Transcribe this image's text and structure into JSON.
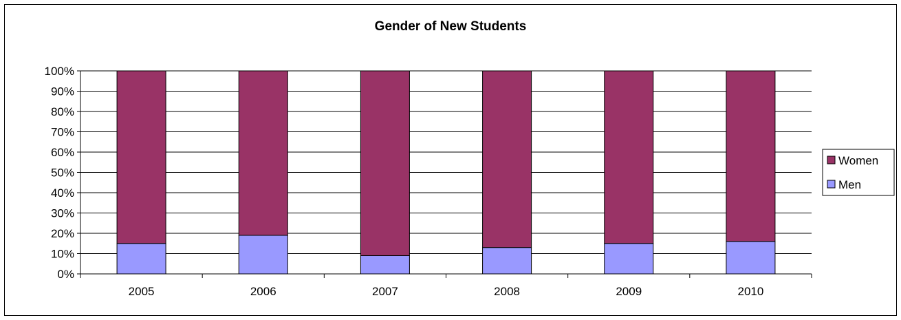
{
  "chart_data": {
    "type": "bar",
    "stacked": true,
    "title": "Gender of New Students",
    "xlabel": "",
    "ylabel": "",
    "categories": [
      "2005",
      "2006",
      "2007",
      "2008",
      "2009",
      "2010"
    ],
    "series": [
      {
        "name": "Men",
        "color": "#9999ff",
        "values": [
          15,
          19,
          9,
          13,
          15,
          16
        ]
      },
      {
        "name": "Women",
        "color": "#993366",
        "values": [
          85,
          81,
          91,
          87,
          85,
          84
        ]
      }
    ],
    "ylim": [
      0,
      100
    ],
    "yticks": [
      "0%",
      "10%",
      "20%",
      "30%",
      "40%",
      "50%",
      "60%",
      "70%",
      "80%",
      "90%",
      "100%"
    ],
    "grid": true,
    "legend_position": "right",
    "legend": [
      "Women",
      "Men"
    ]
  }
}
